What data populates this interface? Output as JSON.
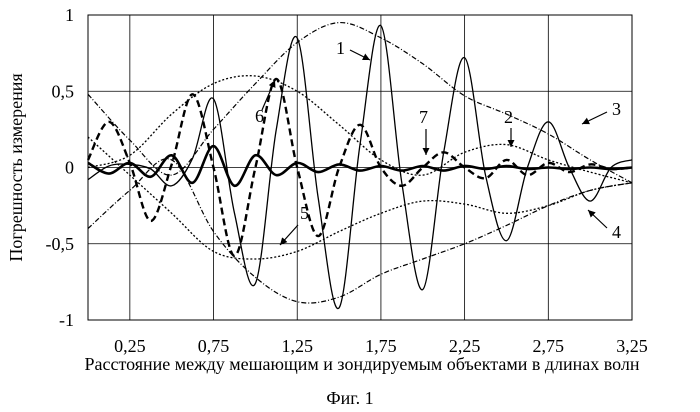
{
  "chart_data": {
    "type": "line",
    "title": "",
    "xlabel": "Расстояние между мешающим и зондируемым объектами в длинах волн",
    "ylabel": "Погрешность измерения",
    "xlim": [
      0,
      3.25
    ],
    "ylim": [
      -1,
      1
    ],
    "x_ticks": [
      "0,25",
      "0,75",
      "1,25",
      "1,75",
      "2,25",
      "2,75",
      "3,25"
    ],
    "x_tick_values": [
      0.25,
      0.75,
      1.25,
      1.75,
      2.25,
      2.75,
      3.25
    ],
    "y_ticks": [
      "1",
      "0,5",
      "0",
      "-0,5",
      "-1"
    ],
    "y_tick_values": [
      1,
      0.5,
      0,
      -0.5,
      -1
    ],
    "grid": true,
    "series": [
      {
        "marker": "1",
        "style": "solid-thin",
        "x": [
          0,
          0.125,
          0.25,
          0.375,
          0.5,
          0.625,
          0.75,
          0.875,
          1,
          1.125,
          1.25,
          1.375,
          1.5,
          1.625,
          1.75,
          1.875,
          2,
          2.125,
          2.25,
          2.375,
          2.5,
          2.625,
          2.75,
          2.875,
          3,
          3.125,
          3.25
        ],
        "y": [
          -0.08,
          0.01,
          0.02,
          -0.01,
          -0.12,
          0.06,
          0.45,
          -0.3,
          -0.76,
          0.25,
          0.85,
          -0.2,
          -0.92,
          0.15,
          0.93,
          -0.1,
          -0.8,
          0.1,
          0.72,
          -0.05,
          -0.48,
          0.0,
          0.3,
          0.0,
          -0.22,
          0.0,
          0.05
        ]
      },
      {
        "marker": "2",
        "style": "dashed",
        "x": [
          0,
          0.125,
          0.25,
          0.375,
          0.5,
          0.625,
          0.75,
          0.875,
          1,
          1.125,
          1.25,
          1.375,
          1.5,
          1.625,
          1.75,
          1.875,
          2,
          2.125,
          2.25,
          2.375,
          2.5,
          2.625,
          2.75,
          2.875,
          3,
          3.125,
          3.25
        ],
        "y": [
          0.05,
          0.3,
          0.03,
          -0.35,
          0.02,
          0.48,
          0.0,
          -0.58,
          0.0,
          0.58,
          0.0,
          -0.45,
          0.0,
          0.28,
          0.0,
          -0.12,
          0.0,
          0.1,
          0.0,
          -0.07,
          0.05,
          -0.05,
          0.03,
          -0.03,
          0.02,
          -0.01,
          0.0
        ]
      },
      {
        "marker": "3",
        "style": "dash-dot",
        "x": [
          0,
          0.25,
          0.5,
          0.75,
          1,
          1.25,
          1.5,
          1.75,
          2,
          2.25,
          2.5,
          2.75,
          3,
          3.25
        ],
        "y": [
          0.48,
          0.18,
          -0.05,
          0.25,
          0.55,
          0.82,
          0.95,
          0.85,
          0.68,
          0.47,
          0.35,
          0.22,
          0.05,
          -0.1
        ]
      },
      {
        "marker": "4",
        "style": "dash-dot",
        "x": [
          0,
          0.25,
          0.5,
          0.75,
          1,
          1.25,
          1.5,
          1.75,
          2,
          2.25,
          2.5,
          2.75,
          3,
          3.25
        ],
        "y": [
          -0.4,
          -0.15,
          0.05,
          -0.42,
          -0.72,
          -0.88,
          -0.85,
          -0.7,
          -0.6,
          -0.5,
          -0.38,
          -0.25,
          -0.15,
          -0.1
        ]
      },
      {
        "marker": "5",
        "style": "dotted",
        "x": [
          0,
          0.25,
          0.5,
          0.75,
          1,
          1.25,
          1.5,
          1.75,
          2,
          2.25,
          2.5,
          2.75,
          3,
          3.25
        ],
        "y": [
          0.2,
          -0.05,
          -0.3,
          -0.55,
          -0.6,
          -0.55,
          -0.42,
          -0.3,
          -0.22,
          -0.24,
          -0.3,
          -0.25,
          -0.15,
          -0.1
        ]
      },
      {
        "marker": "6",
        "style": "dotted",
        "x": [
          0,
          0.25,
          0.5,
          0.75,
          1,
          1.25,
          1.5,
          1.75,
          2,
          2.25,
          2.5,
          2.75,
          3,
          3.25
        ],
        "y": [
          0.0,
          0.08,
          0.35,
          0.55,
          0.6,
          0.5,
          0.28,
          0.05,
          -0.05,
          0.1,
          0.15,
          0.05,
          -0.03,
          -0.1
        ]
      },
      {
        "marker": "7",
        "style": "solid-thick",
        "x": [
          0,
          0.125,
          0.25,
          0.375,
          0.5,
          0.625,
          0.75,
          0.875,
          1,
          1.125,
          1.25,
          1.375,
          1.5,
          1.625,
          1.75,
          1.875,
          2,
          2.125,
          2.25,
          2.375,
          2.5,
          2.625,
          2.75,
          2.875,
          3,
          3.125,
          3.25
        ],
        "y": [
          0.03,
          -0.04,
          0.03,
          -0.06,
          0.08,
          -0.1,
          0.14,
          -0.12,
          0.08,
          -0.05,
          0.03,
          -0.03,
          0.02,
          -0.02,
          0.01,
          -0.02,
          0.01,
          -0.02,
          0.01,
          -0.01,
          0.01,
          -0.01,
          0.0,
          -0.01,
          0.0,
          -0.01,
          0.0
        ]
      }
    ],
    "annotations": [
      "1",
      "2",
      "3",
      "4",
      "5",
      "6",
      "7"
    ]
  },
  "caption": "Фиг. 1"
}
